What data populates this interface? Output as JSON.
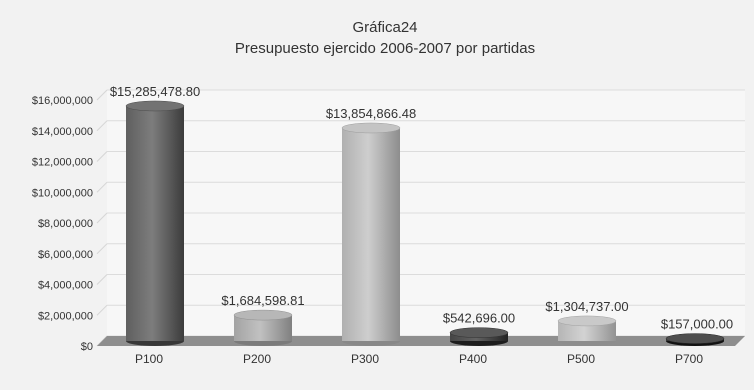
{
  "chart_data": {
    "type": "bar",
    "title": "Gráfica24",
    "subtitle": "Presupuesto ejercido 2006-2007 por partidas",
    "categories": [
      "P100",
      "P200",
      "P300",
      "P400",
      "P500",
      "P700"
    ],
    "values": [
      15285478.8,
      1684598.81,
      13854866.48,
      542696.0,
      1304737.0,
      157000.0
    ],
    "data_labels": [
      "$15,285,478.80",
      "$1,684,598.81",
      "$13,854,866.48",
      "$542,696.00",
      "$1,304,737.00",
      "$157,000.00"
    ],
    "y_ticks": [
      0,
      2000000,
      4000000,
      6000000,
      8000000,
      10000000,
      12000000,
      14000000,
      16000000
    ],
    "y_tick_labels": [
      "$0",
      "$2,000,000",
      "$4,000,000",
      "$6,000,000",
      "$8,000,000",
      "$10,000,000",
      "$12,000,000",
      "$14,000,000",
      "$16,000,000"
    ],
    "ylim": [
      0,
      16000000
    ],
    "grid": true,
    "legend": "none",
    "bar_colors": [
      "#5f5f5f",
      "#a3a3a3",
      "#b0b0b0",
      "#454545",
      "#b5b5b5",
      "#3a3a3a"
    ]
  }
}
